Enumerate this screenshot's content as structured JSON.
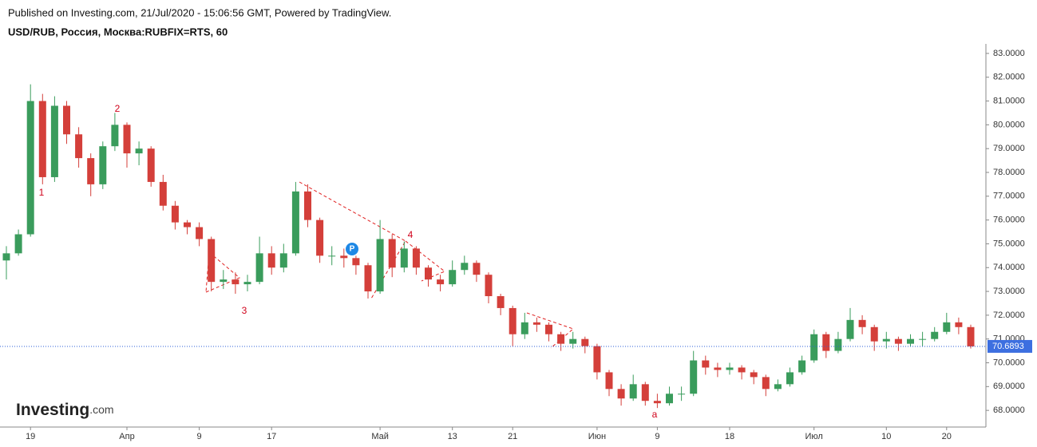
{
  "chart_data": {
    "type": "candlestick",
    "header": "Published on Investing.com, 21/Jul/2020 - 15:06:56 GMT, Powered by TradingView.",
    "title": "USD/RUB, Россия, Москва:RUBFIX=RTS, 60",
    "logo": "Investing",
    "logo_suffix": ".com",
    "annotations": [
      "1",
      "2",
      "3",
      "4",
      "a"
    ],
    "marker_label": "P",
    "up_color": "#3a9c5c",
    "down_color": "#d43f3a",
    "categories": [
      null,
      null,
      "19",
      null,
      null,
      null,
      null,
      null,
      null,
      null,
      "Апр",
      null,
      null,
      null,
      null,
      null,
      "9",
      null,
      null,
      null,
      null,
      null,
      "17",
      null,
      null,
      null,
      null,
      null,
      null,
      null,
      null,
      "Май",
      null,
      null,
      null,
      null,
      null,
      "13",
      null,
      null,
      null,
      null,
      "21",
      null,
      null,
      null,
      null,
      null,
      null,
      "Июн",
      null,
      null,
      null,
      null,
      "9",
      null,
      null,
      null,
      null,
      null,
      "18",
      null,
      null,
      null,
      null,
      null,
      null,
      "Июл",
      null,
      null,
      null,
      null,
      null,
      "10",
      null,
      null,
      null,
      null,
      "20",
      null,
      null
    ],
    "open": [
      74.3,
      74.6,
      75.4,
      81.0,
      77.8,
      80.8,
      79.6,
      78.6,
      77.5,
      79.1,
      80.0,
      78.8,
      79.0,
      77.6,
      76.6,
      75.9,
      75.7,
      75.2,
      73.4,
      73.5,
      73.3,
      73.4,
      74.6,
      74.0,
      74.6,
      77.2,
      76.0,
      74.5,
      74.5,
      74.4,
      74.1,
      73.0,
      75.2,
      74.0,
      74.8,
      74.0,
      73.5,
      73.3,
      73.9,
      74.2,
      73.7,
      72.8,
      72.3,
      71.2,
      71.7,
      71.6,
      71.2,
      70.8,
      71.0,
      70.7,
      69.6,
      68.9,
      68.5,
      69.1,
      68.4,
      68.3,
      68.7,
      68.7,
      70.1,
      69.8,
      69.7,
      69.8,
      69.6,
      69.4,
      68.9,
      69.1,
      69.6,
      70.1,
      71.2,
      70.5,
      71.0,
      71.8,
      71.5,
      70.9,
      71.0,
      70.8,
      71.0,
      71.0,
      71.3,
      71.7,
      71.5
    ],
    "high": [
      74.9,
      75.6,
      81.7,
      81.3,
      81.2,
      81.0,
      79.9,
      78.8,
      79.3,
      80.5,
      80.1,
      79.3,
      79.1,
      77.9,
      76.8,
      76.0,
      75.9,
      75.3,
      73.9,
      73.8,
      73.7,
      75.3,
      74.9,
      75.0,
      77.6,
      77.5,
      76.1,
      74.9,
      74.8,
      74.5,
      74.2,
      76.0,
      75.4,
      75.1,
      74.9,
      74.1,
      73.7,
      74.3,
      74.5,
      74.3,
      73.8,
      72.9,
      72.4,
      72.1,
      71.9,
      71.7,
      71.3,
      71.3,
      71.1,
      70.8,
      69.7,
      69.1,
      69.5,
      69.2,
      68.7,
      69.0,
      69.0,
      70.5,
      70.3,
      70.0,
      70.0,
      69.9,
      69.7,
      69.5,
      69.3,
      69.8,
      70.3,
      71.4,
      71.3,
      71.3,
      72.3,
      72.0,
      71.6,
      71.3,
      71.1,
      71.2,
      71.3,
      71.5,
      72.1,
      71.9,
      71.6
    ],
    "low": [
      73.5,
      74.5,
      75.3,
      77.5,
      77.6,
      79.2,
      78.2,
      77.0,
      77.3,
      78.9,
      78.2,
      78.3,
      77.4,
      76.4,
      75.6,
      75.4,
      74.9,
      73.0,
      73.1,
      72.9,
      73.0,
      73.3,
      73.7,
      73.8,
      74.5,
      75.7,
      74.2,
      74.1,
      74.0,
      73.7,
      72.7,
      72.9,
      73.6,
      73.8,
      73.7,
      73.2,
      73.0,
      73.2,
      73.7,
      73.4,
      72.5,
      72.0,
      70.7,
      71.0,
      71.3,
      70.9,
      70.5,
      70.6,
      70.4,
      69.3,
      68.6,
      68.2,
      68.4,
      68.2,
      68.1,
      68.2,
      68.4,
      68.6,
      69.5,
      69.4,
      69.5,
      69.3,
      69.1,
      68.6,
      68.8,
      69.0,
      69.5,
      70.0,
      70.2,
      70.4,
      70.9,
      71.2,
      70.5,
      70.6,
      70.5,
      70.7,
      70.7,
      70.9,
      71.2,
      71.2,
      70.6
    ],
    "close": [
      74.6,
      75.4,
      81.0,
      77.8,
      80.8,
      79.6,
      78.6,
      77.5,
      79.1,
      80.0,
      78.8,
      79.0,
      77.6,
      76.6,
      75.9,
      75.7,
      75.2,
      73.4,
      73.5,
      73.3,
      73.4,
      74.6,
      74.0,
      74.6,
      77.2,
      76.0,
      74.5,
      74.5,
      74.4,
      74.1,
      73.0,
      75.2,
      74.0,
      74.8,
      74.0,
      73.5,
      73.3,
      73.9,
      74.2,
      73.7,
      72.8,
      72.3,
      71.2,
      71.7,
      71.6,
      71.2,
      70.8,
      71.0,
      70.7,
      69.6,
      68.9,
      68.5,
      69.1,
      68.4,
      68.3,
      68.7,
      68.7,
      70.1,
      69.8,
      69.7,
      69.8,
      69.6,
      69.4,
      68.9,
      69.1,
      69.6,
      70.1,
      71.2,
      70.5,
      71.0,
      71.8,
      71.5,
      70.9,
      71.0,
      70.8,
      71.0,
      71.0,
      71.3,
      71.7,
      71.5,
      70.69
    ],
    "last_price": {
      "value": 70.6893,
      "label": "70.6893"
    },
    "ylim": [
      67.3,
      83.4
    ],
    "yticks": [
      {
        "value": 68,
        "label": "68.0000"
      },
      {
        "value": 69,
        "label": "69.0000"
      },
      {
        "value": 70,
        "label": "70.0000"
      },
      {
        "value": 71,
        "label": "71.0000"
      },
      {
        "value": 72,
        "label": "72.0000"
      },
      {
        "value": 73,
        "label": "73.0000"
      },
      {
        "value": 74,
        "label": "74.0000"
      },
      {
        "value": 75,
        "label": "75.0000"
      },
      {
        "value": 76,
        "label": "76.0000"
      },
      {
        "value": 77,
        "label": "77.0000"
      },
      {
        "value": 78,
        "label": "78.0000"
      },
      {
        "value": 79,
        "label": "79.0000"
      },
      {
        "value": 80,
        "label": "80.0000"
      },
      {
        "value": 81,
        "label": "81.0000"
      },
      {
        "value": 82,
        "label": "82.0000"
      },
      {
        "value": 83,
        "label": "83.0000"
      }
    ]
  }
}
